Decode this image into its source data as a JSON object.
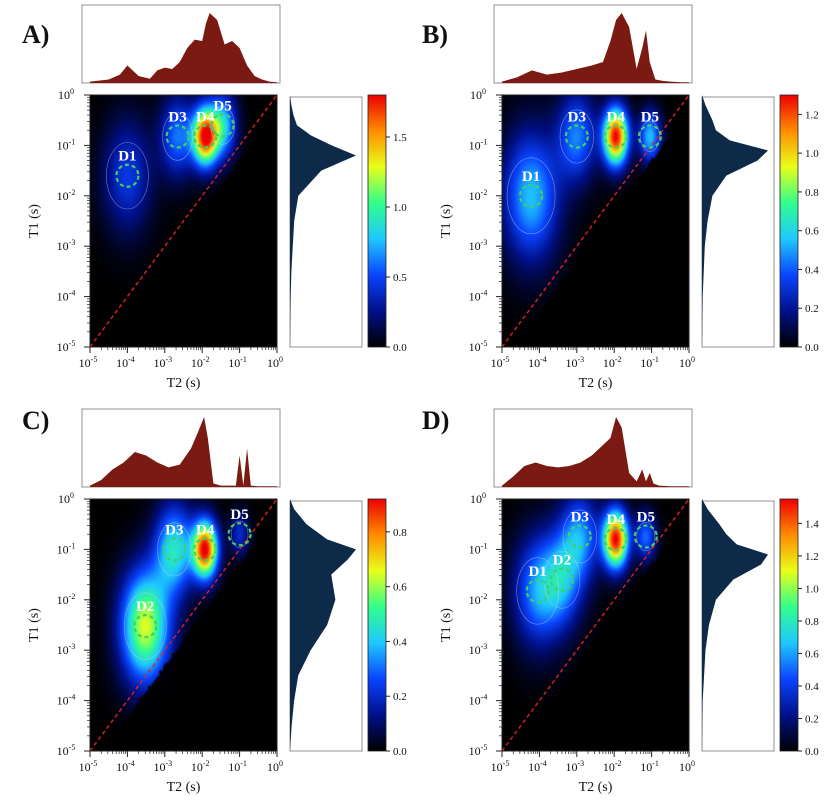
{
  "colors": {
    "top_projection_fill": "#7a1a12",
    "side_projection_fill": "#0d2a48",
    "map_background": "#000000",
    "diagonal_line": "#e02020",
    "contour_line": "#cfd6e4",
    "circle_marker": "#3ed06a",
    "peak_label_text": "#ffffff",
    "colormap": [
      "#000000",
      "#00108a",
      "#0a44ff",
      "#1fc8ff",
      "#31ff8c",
      "#e9ff1a",
      "#ff8c00",
      "#ee0000"
    ]
  },
  "axis_labels": {
    "x": "T2 (s)",
    "y": "T1 (s)"
  },
  "tick_labels": {
    "x": [
      "10-5",
      "10-4",
      "10-3",
      "10-2",
      "10-1",
      "100"
    ],
    "y": [
      "10-5",
      "10-4",
      "10-3",
      "10-2",
      "10-1",
      "100"
    ]
  },
  "chart_data": [
    {
      "type": "heatmap",
      "panel_label": "A)",
      "xlabel": "T2 (s)",
      "ylabel": "T1 (s)",
      "xscale": "log",
      "yscale": "log",
      "xlim": [
        1e-05,
        1
      ],
      "ylim": [
        1e-05,
        1
      ],
      "colorbar": {
        "range": [
          0,
          1.8
        ],
        "ticks": [
          "0.0",
          "0.5",
          "1.0",
          "1.5"
        ],
        "tick_values": [
          0,
          0.5,
          1.0,
          1.5
        ]
      },
      "diagonal": "T1 = T2",
      "peaks": [
        {
          "label": "D1",
          "t2": 0.0001,
          "t1": 0.025,
          "amplitude": 0.45,
          "width": 0.35
        },
        {
          "label": "D3",
          "t2": 0.0022,
          "t1": 0.15,
          "amplitude": 0.6,
          "width": 0.25
        },
        {
          "label": "D4",
          "t2": 0.012,
          "t1": 0.15,
          "amplitude": 1.75,
          "width": 0.18
        },
        {
          "label": "D5",
          "t2": 0.035,
          "t1": 0.25,
          "amplitude": 0.8,
          "width": 0.2
        }
      ],
      "circled_regions": [
        {
          "label": "D1",
          "t2": 0.0001,
          "t1": 0.025
        },
        {
          "label": "D3",
          "t2": 0.0022,
          "t1": 0.15
        },
        {
          "label": "D4",
          "t2": 0.012,
          "t1": 0.15
        },
        {
          "label": "D5",
          "t2": 0.035,
          "t1": 0.25
        }
      ],
      "t2_projection": {
        "log_t2": [
          -5,
          -4.5,
          -4.2,
          -4,
          -3.7,
          -3.4,
          -3.2,
          -3,
          -2.8,
          -2.6,
          -2.4,
          -2.2,
          -2,
          -1.9,
          -1.8,
          -1.6,
          -1.4,
          -1.2,
          -1,
          -0.8,
          -0.6,
          -0.4,
          -0.2,
          0
        ],
        "amplitude": [
          0.02,
          0.05,
          0.12,
          0.25,
          0.1,
          0.06,
          0.18,
          0.22,
          0.2,
          0.3,
          0.5,
          0.62,
          0.6,
          0.85,
          1.0,
          0.9,
          0.55,
          0.6,
          0.5,
          0.25,
          0.1,
          0.05,
          0.02,
          0.01
        ]
      },
      "t1_projection": {
        "log_t1": [
          -5,
          -4,
          -3.5,
          -3,
          -2.5,
          -2,
          -1.5,
          -1.2,
          -1,
          -0.8,
          -0.6,
          -0.4,
          -0.2,
          0
        ],
        "amplitude": [
          0.0,
          0.01,
          0.02,
          0.04,
          0.06,
          0.12,
          0.45,
          0.95,
          0.6,
          0.3,
          0.1,
          0.05,
          0.02,
          0.0
        ]
      }
    },
    {
      "type": "heatmap",
      "panel_label": "B)",
      "xlabel": "T2 (s)",
      "ylabel": "T1 (s)",
      "xscale": "log",
      "yscale": "log",
      "xlim": [
        1e-05,
        1
      ],
      "ylim": [
        1e-05,
        1
      ],
      "colorbar": {
        "range": [
          0,
          1.3
        ],
        "ticks": [
          "0.0",
          "0.2",
          "0.4",
          "0.6",
          "0.8",
          "1.0",
          "1.2"
        ],
        "tick_values": [
          0,
          0.2,
          0.4,
          0.6,
          0.8,
          1.0,
          1.2
        ]
      },
      "diagonal": "T1 = T2",
      "peaks": [
        {
          "label": "D1",
          "t2": 6e-05,
          "t1": 0.01,
          "amplitude": 0.55,
          "width": 0.4
        },
        {
          "label": "D3",
          "t2": 0.001,
          "t1": 0.15,
          "amplitude": 0.45,
          "width": 0.28
        },
        {
          "label": "D4",
          "t2": 0.011,
          "t1": 0.15,
          "amplitude": 1.3,
          "width": 0.18
        },
        {
          "label": "D5",
          "t2": 0.09,
          "t1": 0.15,
          "amplitude": 0.55,
          "width": 0.16
        }
      ],
      "circled_regions": [
        {
          "label": "D1",
          "t2": 6e-05,
          "t1": 0.01
        },
        {
          "label": "D3",
          "t2": 0.001,
          "t1": 0.15
        },
        {
          "label": "D4",
          "t2": 0.011,
          "t1": 0.15
        },
        {
          "label": "D5",
          "t2": 0.09,
          "t1": 0.15
        }
      ],
      "t2_projection": {
        "log_t2": [
          -5,
          -4.6,
          -4.2,
          -3.8,
          -3.4,
          -3,
          -2.6,
          -2.3,
          -2.1,
          -1.95,
          -1.8,
          -1.6,
          -1.4,
          -1.25,
          -1.15,
          -1.05,
          -0.9,
          -0.7,
          -0.5,
          -0.2,
          0
        ],
        "amplitude": [
          0.02,
          0.08,
          0.18,
          0.12,
          0.15,
          0.2,
          0.25,
          0.3,
          0.6,
          0.9,
          1.0,
          0.8,
          0.2,
          0.5,
          0.75,
          0.3,
          0.05,
          0.03,
          0.02,
          0.01,
          0.01
        ]
      },
      "t1_projection": {
        "log_t1": [
          -5,
          -4,
          -3,
          -2.5,
          -2,
          -1.6,
          -1.3,
          -1.1,
          -0.9,
          -0.7,
          -0.5,
          -0.2,
          0
        ],
        "amplitude": [
          0.0,
          0.01,
          0.04,
          0.08,
          0.15,
          0.35,
          0.8,
          0.95,
          0.4,
          0.2,
          0.15,
          0.05,
          0.0
        ]
      }
    },
    {
      "type": "heatmap",
      "panel_label": "C)",
      "xlabel": "T2 (s)",
      "ylabel": "T1 (s)",
      "xscale": "log",
      "yscale": "log",
      "xlim": [
        1e-05,
        1
      ],
      "ylim": [
        1e-05,
        1
      ],
      "colorbar": {
        "range": [
          0,
          0.92
        ],
        "ticks": [
          "0.0",
          "0.2",
          "0.4",
          "0.6",
          "0.8"
        ],
        "tick_values": [
          0,
          0.2,
          0.4,
          0.6,
          0.8
        ]
      },
      "diagonal": "T1 = T2",
      "peaks": [
        {
          "label": "D2",
          "t2": 0.0003,
          "t1": 0.003,
          "amplitude": 0.65,
          "width": 0.35
        },
        {
          "label": "D3",
          "t2": 0.0018,
          "t1": 0.1,
          "amplitude": 0.45,
          "width": 0.28
        },
        {
          "label": "D4",
          "t2": 0.012,
          "t1": 0.1,
          "amplitude": 0.92,
          "width": 0.18
        },
        {
          "label": "D5",
          "t2": 0.1,
          "t1": 0.2,
          "amplitude": 0.2,
          "width": 0.14
        }
      ],
      "circled_regions": [
        {
          "label": "D2",
          "t2": 0.0003,
          "t1": 0.003
        },
        {
          "label": "D3",
          "t2": 0.0018,
          "t1": 0.1
        },
        {
          "label": "D4",
          "t2": 0.012,
          "t1": 0.1
        },
        {
          "label": "D5",
          "t2": 0.1,
          "t1": 0.2
        }
      ],
      "t2_projection": {
        "log_t2": [
          -5,
          -4.7,
          -4.4,
          -4.1,
          -3.8,
          -3.5,
          -3.2,
          -2.9,
          -2.6,
          -2.3,
          -2.1,
          -1.95,
          -1.85,
          -1.7,
          -1.5,
          -1.3,
          -1.1,
          -1.0,
          -0.9,
          -0.8,
          -0.7,
          -0.5,
          -0.2,
          0
        ],
        "amplitude": [
          0.02,
          0.1,
          0.25,
          0.35,
          0.5,
          0.45,
          0.35,
          0.28,
          0.32,
          0.55,
          0.8,
          1.0,
          0.7,
          0.05,
          0.02,
          0.02,
          0.02,
          0.45,
          0.02,
          0.55,
          0.02,
          0.01,
          0.01,
          0.01
        ]
      },
      "t1_projection": {
        "log_t1": [
          -5,
          -4.5,
          -4,
          -3.5,
          -3,
          -2.5,
          -2,
          -1.5,
          -1.2,
          -1,
          -0.8,
          -0.5,
          -0.2,
          0
        ],
        "amplitude": [
          0.0,
          0.02,
          0.05,
          0.1,
          0.25,
          0.45,
          0.55,
          0.5,
          0.7,
          0.8,
          0.45,
          0.2,
          0.05,
          0.0
        ]
      }
    },
    {
      "type": "heatmap",
      "panel_label": "D)",
      "xlabel": "T2 (s)",
      "ylabel": "T1 (s)",
      "xscale": "log",
      "yscale": "log",
      "xlim": [
        1e-05,
        1
      ],
      "ylim": [
        1e-05,
        1
      ],
      "colorbar": {
        "range": [
          0,
          1.55
        ],
        "ticks": [
          "0.0",
          "0.2",
          "0.4",
          "0.6",
          "0.8",
          "1.0",
          "1.2",
          "1.4"
        ],
        "tick_values": [
          0,
          0.2,
          0.4,
          0.6,
          0.8,
          1.0,
          1.2,
          1.4
        ]
      },
      "diagonal": "T1 = T2",
      "peaks": [
        {
          "label": "D1",
          "t2": 9e-05,
          "t1": 0.015,
          "amplitude": 0.55,
          "width": 0.35
        },
        {
          "label": "D2",
          "t2": 0.0004,
          "t1": 0.025,
          "amplitude": 0.5,
          "width": 0.3
        },
        {
          "label": "D3",
          "t2": 0.0012,
          "t1": 0.18,
          "amplitude": 0.55,
          "width": 0.28
        },
        {
          "label": "D4",
          "t2": 0.011,
          "t1": 0.16,
          "amplitude": 1.55,
          "width": 0.18
        },
        {
          "label": "D5",
          "t2": 0.07,
          "t1": 0.18,
          "amplitude": 0.5,
          "width": 0.15
        }
      ],
      "circled_regions": [
        {
          "label": "D1",
          "t2": 9e-05,
          "t1": 0.015
        },
        {
          "label": "D2",
          "t2": 0.0004,
          "t1": 0.025
        },
        {
          "label": "D3",
          "t2": 0.0012,
          "t1": 0.18
        },
        {
          "label": "D4",
          "t2": 0.011,
          "t1": 0.16
        },
        {
          "label": "D5",
          "t2": 0.07,
          "t1": 0.18
        }
      ],
      "t2_projection": {
        "log_t2": [
          -5,
          -4.7,
          -4.4,
          -4.1,
          -3.8,
          -3.5,
          -3.2,
          -2.9,
          -2.6,
          -2.3,
          -2.1,
          -1.95,
          -1.8,
          -1.6,
          -1.4,
          -1.25,
          -1.15,
          -1.05,
          -0.95,
          -0.8,
          -0.5,
          -0.2,
          0
        ],
        "amplitude": [
          0.02,
          0.15,
          0.3,
          0.35,
          0.3,
          0.28,
          0.3,
          0.35,
          0.45,
          0.6,
          0.7,
          1.0,
          0.85,
          0.2,
          0.08,
          0.25,
          0.08,
          0.2,
          0.05,
          0.02,
          0.01,
          0.01,
          0.01
        ]
      },
      "t1_projection": {
        "log_t1": [
          -5,
          -4,
          -3,
          -2.5,
          -2,
          -1.6,
          -1.3,
          -1.1,
          -0.9,
          -0.7,
          -0.5,
          -0.2,
          0
        ],
        "amplitude": [
          0.0,
          0.01,
          0.05,
          0.1,
          0.2,
          0.45,
          0.85,
          0.95,
          0.5,
          0.35,
          0.25,
          0.08,
          0.0
        ]
      }
    }
  ]
}
